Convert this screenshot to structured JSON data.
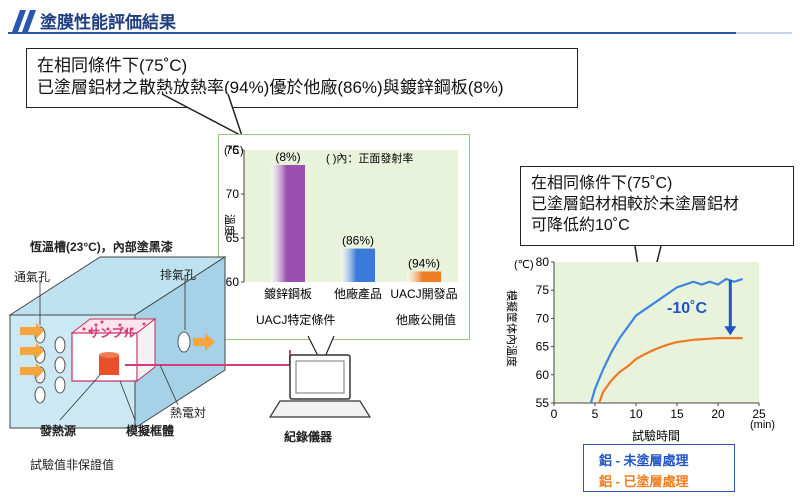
{
  "header": {
    "title": "塗膜性能評価結果"
  },
  "callout_left": {
    "line1": "在相同條件下(75˚C)",
    "line2": "已塗層鋁材之散熱放熱率(94%)優於他廠(86%)與鍍鋅鋼板(8%)"
  },
  "callout_right": {
    "line1": "在相同條件下(75˚C)",
    "line2": "已塗層鋁材相較於未塗層鋁材",
    "line3": "可降低約10˚C"
  },
  "apparatus": {
    "chamber_label": "恆溫槽(23°C)，內部塗黑漆",
    "inlet_label": "通氣孔",
    "exhaust_label": "排氣孔",
    "sample_label": "サンプル",
    "heat_source_label": "發熱源",
    "frame_label": "模擬框體",
    "thermocouple_label": "熱電対",
    "recorder_label": "紀錄儀器",
    "note": "試驗值非保證值"
  },
  "colors": {
    "galvanized": "#9b4fb0",
    "other": "#3a7ad8",
    "uacj": "#ef7d22",
    "uncoated": "#3a86e0",
    "coated": "#f07a22",
    "plot_bg": "#e9f3dc",
    "arrow": "#1f56c4"
  },
  "bar_chart": {
    "unit": "(℃)",
    "ylabel": "溫度",
    "legend_note": "(  )內：正面發射率",
    "ylim": [
      60,
      75
    ],
    "yticks": [
      60,
      65,
      70,
      75
    ],
    "categories": [
      "鍍鋅鋼板",
      "他廠產品",
      "UACJ開發品"
    ],
    "values": [
      73.3,
      63.8,
      61.2
    ],
    "emissivity_labels": [
      "(8%)",
      "(86%)",
      "(94%)"
    ],
    "group_label_left": "UACJ特定條件",
    "group_label_right": "他廠公開值"
  },
  "chart_data": {
    "type": "line",
    "ylabel": "模擬筐体內溫度",
    "xlabel": "試驗時間",
    "x_unit": "(min)",
    "y_unit": "(℃)",
    "xlim": [
      0,
      25
    ],
    "ylim": [
      55,
      80
    ],
    "xticks": [
      0,
      5,
      10,
      15,
      20,
      25
    ],
    "yticks": [
      55,
      60,
      65,
      70,
      75,
      80
    ],
    "annotation": "-10˚C",
    "series": [
      {
        "name": "鋁 - 未塗層處理",
        "x": [
          4.5,
          5,
          6,
          7,
          8,
          9,
          10,
          11,
          12,
          13,
          14,
          15,
          16,
          17,
          18,
          19,
          20,
          21,
          22,
          23
        ],
        "y": [
          55,
          57.5,
          61,
          64,
          66.5,
          68.5,
          70.5,
          71.5,
          72.5,
          73.5,
          74.5,
          75.5,
          76,
          76.5,
          76,
          76.5,
          76,
          77,
          76.5,
          77
        ]
      },
      {
        "name": "鋁 - 已塗層處理",
        "x": [
          5.5,
          6,
          7,
          8,
          9,
          10,
          11,
          12,
          13,
          14,
          15,
          16,
          17,
          18,
          19,
          20,
          21,
          22,
          23
        ],
        "y": [
          55,
          57,
          59,
          60.5,
          61.5,
          62.8,
          63.6,
          64.3,
          64.9,
          65.4,
          65.8,
          66,
          66.2,
          66.3,
          66.4,
          66.5,
          66.5,
          66.5,
          66.5
        ]
      }
    ]
  }
}
